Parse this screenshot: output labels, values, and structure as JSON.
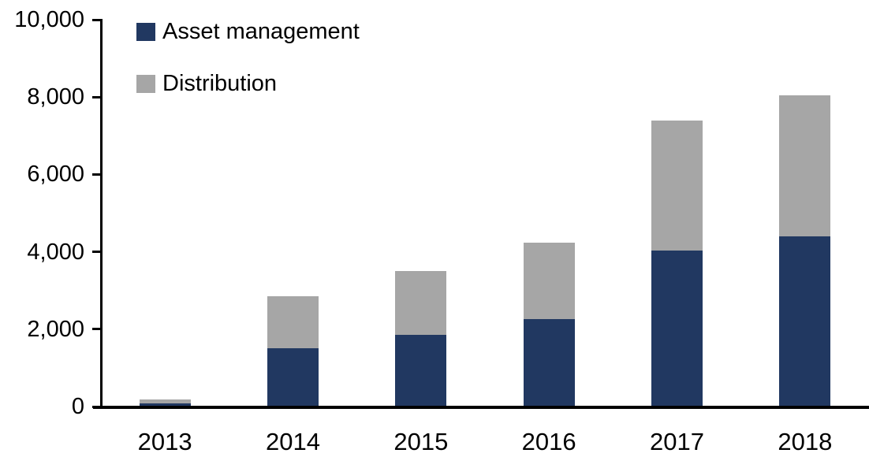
{
  "chart_data": {
    "type": "bar",
    "stacked": true,
    "title": "",
    "xlabel": "",
    "ylabel": "",
    "categories": [
      "2013",
      "2014",
      "2015",
      "2016",
      "2017",
      "2018"
    ],
    "series": [
      {
        "name": "Asset management",
        "color": "#213861",
        "values": [
          80,
          1500,
          1850,
          2270,
          4030,
          4400
        ]
      },
      {
        "name": "Distribution",
        "color": "#A6A6A6",
        "values": [
          100,
          1350,
          1650,
          1970,
          3370,
          3650
        ]
      }
    ],
    "stack_totals": [
      180,
      2850,
      3500,
      4240,
      7400,
      8050
    ],
    "ylim": [
      0,
      10000
    ],
    "ytick_interval": 2000,
    "ytick_labels": [
      "0",
      "2,000",
      "4,000",
      "6,000",
      "8,000",
      "10,000"
    ],
    "legend_position": "top-left",
    "grid": false,
    "axis_color": "#000000",
    "background_color": "#FFFFFF"
  }
}
